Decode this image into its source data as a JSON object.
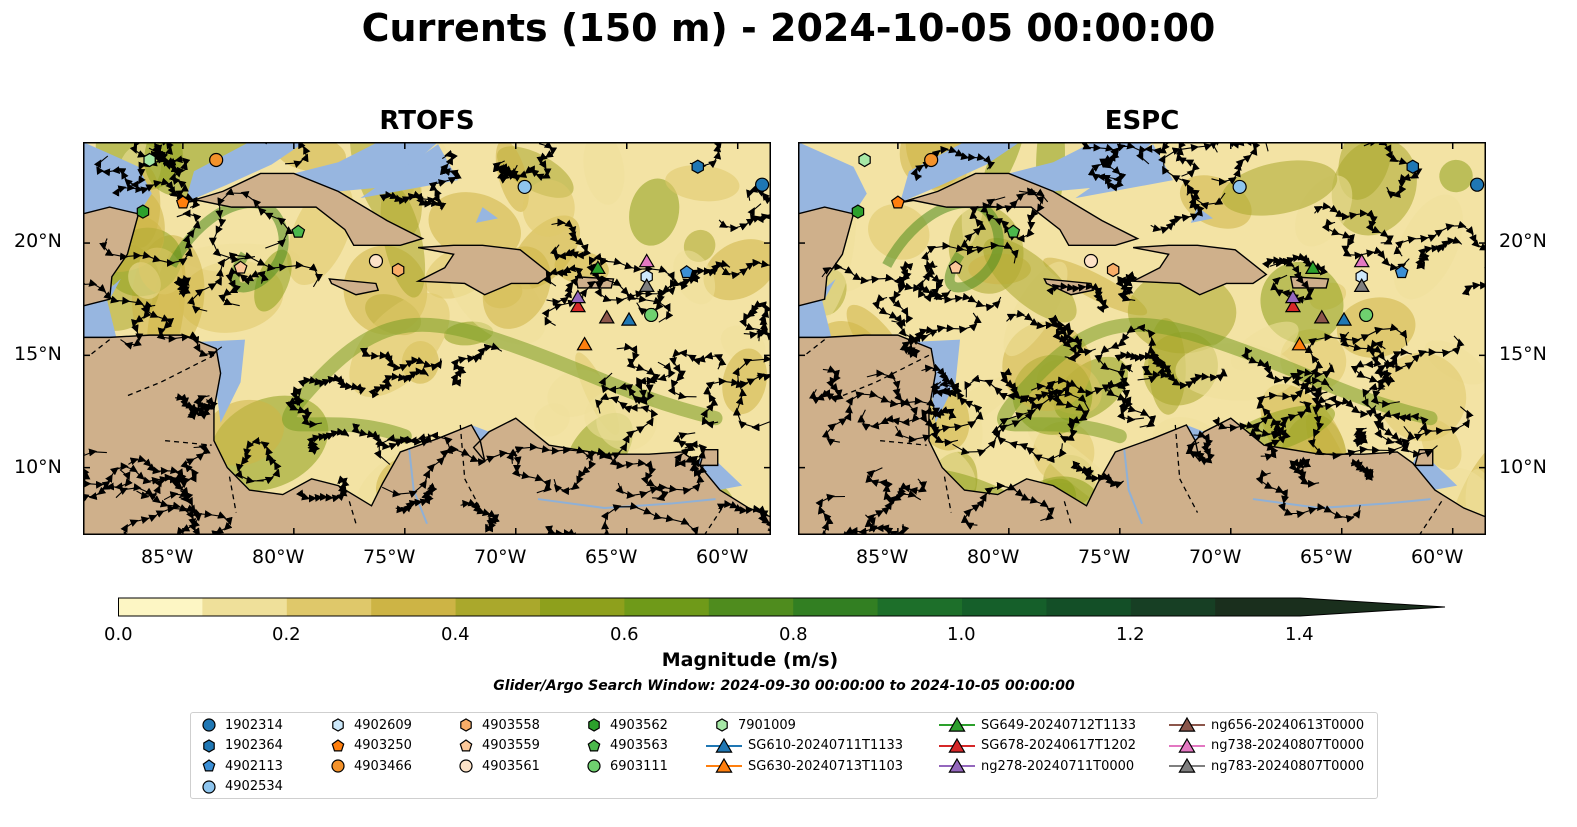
{
  "title": "Currents (150 m) - 2024-10-05 00:00:00",
  "panels": [
    {
      "title": "RTOFS"
    },
    {
      "title": "ESPC"
    }
  ],
  "axes": {
    "x_ticks": [
      "85°W",
      "80°W",
      "75°W",
      "70°W",
      "65°W",
      "60°W"
    ],
    "y_ticks": [
      "20°N",
      "15°N",
      "10°N"
    ],
    "lon_range": [
      -89.5,
      -58.5
    ],
    "lat_range": [
      7.0,
      24.5
    ]
  },
  "colorbar": {
    "label": "Magnitude (m/s)",
    "ticks": [
      "0.0",
      "0.2",
      "0.4",
      "0.6",
      "0.8",
      "1.0",
      "1.2",
      "1.4"
    ],
    "range": [
      0,
      1.5
    ],
    "extend": "max",
    "colors": [
      "#fdf6c4",
      "#efe09a",
      "#dfc86a",
      "#cdb445",
      "#aaa82c",
      "#8ea01c",
      "#6f9a19",
      "#4f8c1e",
      "#327f22",
      "#1d6f2a",
      "#155f2a",
      "#134f27",
      "#173f24",
      "#1a2f1d"
    ]
  },
  "subtitle": "Glider/Argo Search Window: 2024-09-30 00:00:00 to 2024-10-05 00:00:00",
  "colors": {
    "ocean_shelf": "#97b6e0",
    "land": "#cfb08b"
  },
  "legend": [
    {
      "label": "1902314",
      "marker": "circle",
      "color": "#1f77b4"
    },
    {
      "label": "1902364",
      "marker": "hexagon",
      "color": "#1f77b4"
    },
    {
      "label": "4902113",
      "marker": "pentagon",
      "color": "#3b8fd6"
    },
    {
      "label": "4902534",
      "marker": "circle",
      "color": "#8ec5ee"
    },
    {
      "label": "4902609",
      "marker": "hexagon",
      "color": "#cde9fb"
    },
    {
      "label": "4903250",
      "marker": "pentagon",
      "color": "#ff7f0e"
    },
    {
      "label": "4903466",
      "marker": "circle",
      "color": "#f4922a"
    },
    {
      "label": "4903558",
      "marker": "hexagon",
      "color": "#f8ad68"
    },
    {
      "label": "4903559",
      "marker": "pentagon",
      "color": "#fbc89a"
    },
    {
      "label": "4903561",
      "marker": "circle",
      "color": "#fde3c8"
    },
    {
      "label": "4903562",
      "marker": "hexagon",
      "color": "#2ca02c"
    },
    {
      "label": "4903563",
      "marker": "pentagon",
      "color": "#4cb84c"
    },
    {
      "label": "6903111",
      "marker": "circle",
      "color": "#6fd06f"
    },
    {
      "label": "7901009",
      "marker": "hexagon",
      "color": "#a6e8a6"
    },
    {
      "label": "SG610-20240711T1133",
      "marker": "triangle",
      "color": "#1f77b4"
    },
    {
      "label": "SG630-20240713T1103",
      "marker": "triangle",
      "color": "#ff7f0e"
    },
    {
      "label": "SG649-20240712T1133",
      "marker": "triangle",
      "color": "#2ca02c"
    },
    {
      "label": "SG678-20240617T1202",
      "marker": "triangle",
      "color": "#d62728"
    },
    {
      "label": "ng278-20240711T0000",
      "marker": "triangle",
      "color": "#9467bd"
    },
    {
      "label": "ng656-20240613T0000",
      "marker": "triangle",
      "color": "#8c564b"
    },
    {
      "label": "ng738-20240807T0000",
      "marker": "triangle",
      "color": "#e377c2"
    },
    {
      "label": "ng783-20240807T0000",
      "marker": "triangle",
      "color": "#7f7f7f"
    }
  ],
  "markers": [
    {
      "id": "1902314",
      "lon": -58.9,
      "lat": 22.6
    },
    {
      "id": "1902364",
      "lon": -61.8,
      "lat": 23.4
    },
    {
      "id": "4902113",
      "lon": -62.3,
      "lat": 18.7
    },
    {
      "id": "4902534",
      "lon": -69.6,
      "lat": 22.5
    },
    {
      "id": "4902609",
      "lon": -64.1,
      "lat": 18.5
    },
    {
      "id": "4903250",
      "lon": -85.0,
      "lat": 21.8
    },
    {
      "id": "4903466",
      "lon": -83.5,
      "lat": 23.7
    },
    {
      "id": "4903558",
      "lon": -75.3,
      "lat": 18.8
    },
    {
      "id": "4903559",
      "lon": -82.4,
      "lat": 18.9
    },
    {
      "id": "4903561",
      "lon": -76.3,
      "lat": 19.2
    },
    {
      "id": "4903562",
      "lon": -86.8,
      "lat": 21.4
    },
    {
      "id": "4903563",
      "lon": -79.8,
      "lat": 20.5
    },
    {
      "id": "6903111",
      "lon": -63.9,
      "lat": 16.8
    },
    {
      "id": "7901009",
      "lon": -86.5,
      "lat": 23.7
    },
    {
      "id": "SG610-20240711T1133",
      "lon": -64.9,
      "lat": 16.6
    },
    {
      "id": "SG630-20240713T1103",
      "lon": -66.9,
      "lat": 15.5
    },
    {
      "id": "SG649-20240712T1133",
      "lon": -66.3,
      "lat": 18.9
    },
    {
      "id": "SG678-20240617T1202",
      "lon": -67.2,
      "lat": 17.2
    },
    {
      "id": "ng278-20240711T0000",
      "lon": -67.2,
      "lat": 17.6
    },
    {
      "id": "ng656-20240613T0000",
      "lon": -65.9,
      "lat": 16.7
    },
    {
      "id": "ng738-20240807T0000",
      "lon": -64.1,
      "lat": 19.2
    },
    {
      "id": "ng783-20240807T0000",
      "lon": -64.1,
      "lat": 18.1
    }
  ]
}
